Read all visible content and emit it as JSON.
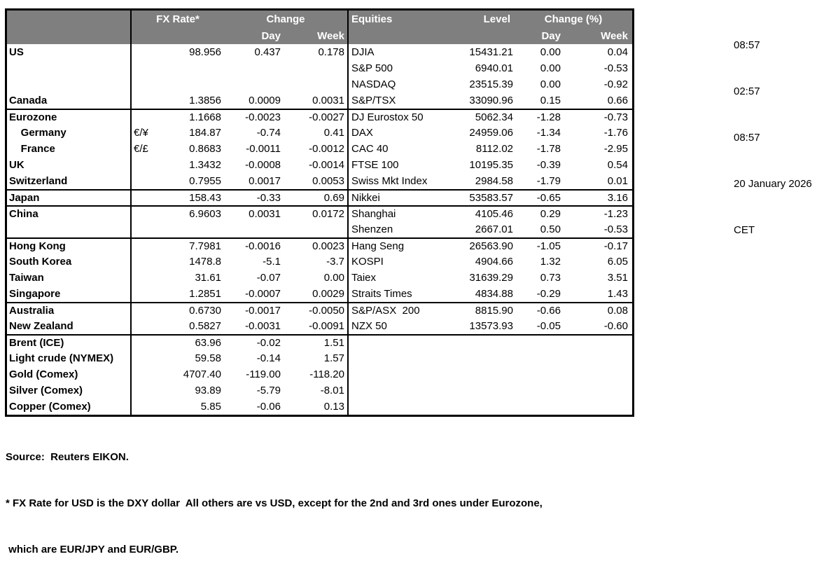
{
  "colors": {
    "header_bg": "#7f7f7f",
    "header_text": "#ffffff",
    "border": "#000000",
    "body_text": "#000000",
    "background": "#ffffff"
  },
  "header": {
    "fx_rate": "FX Rate*",
    "fx_change": "Change",
    "fx_day": "Day",
    "fx_week": "Week",
    "equities": "Equities",
    "level": "Level",
    "eq_change": "Change (%)",
    "eq_day": "Day",
    "eq_week": "Week"
  },
  "table": {
    "rows": [
      {
        "name": "US",
        "pair": "",
        "rate": "98.956",
        "day": "0.437",
        "week": "0.178",
        "ename": "DJIA",
        "level": "15431.21",
        "eday": "0.00",
        "eweek": "0.04",
        "sep": false
      },
      {
        "name": "",
        "pair": "",
        "rate": "",
        "day": "",
        "week": "",
        "ename": "S&P 500",
        "level": "6940.01",
        "eday": "0.00",
        "eweek": "-0.53",
        "sep": false
      },
      {
        "name": "",
        "pair": "",
        "rate": "",
        "day": "",
        "week": "",
        "ename": "NASDAQ",
        "level": "23515.39",
        "eday": "0.00",
        "eweek": "-0.92",
        "sep": false
      },
      {
        "name": "Canada",
        "pair": "",
        "rate": "1.3856",
        "day": "0.0009",
        "week": "0.0031",
        "ename": "S&P/TSX",
        "level": "33090.96",
        "eday": "0.15",
        "eweek": "0.66",
        "sep": false
      },
      {
        "name": "Eurozone",
        "pair": "",
        "rate": "1.1668",
        "day": "-0.0023",
        "week": "-0.0027",
        "ename": "DJ Eurostox 50",
        "level": "5062.34",
        "eday": "-1.28",
        "eweek": "-0.73",
        "sep": true
      },
      {
        "name": "    Germany",
        "pair": "€/¥",
        "rate": "184.87",
        "day": "-0.74",
        "week": "0.41",
        "ename": "DAX",
        "level": "24959.06",
        "eday": "-1.34",
        "eweek": "-1.76",
        "sep": false
      },
      {
        "name": "    France",
        "pair": "€/£",
        "rate": "0.8683",
        "day": "-0.0011",
        "week": "-0.0012",
        "ename": "CAC 40",
        "level": "8112.02",
        "eday": "-1.78",
        "eweek": "-2.95",
        "sep": false
      },
      {
        "name": "UK",
        "pair": "",
        "rate": "1.3432",
        "day": "-0.0008",
        "week": "-0.0014",
        "ename": "FTSE 100",
        "level": "10195.35",
        "eday": "-0.39",
        "eweek": "0.54",
        "sep": false
      },
      {
        "name": "Switzerland",
        "pair": "",
        "rate": "0.7955",
        "day": "0.0017",
        "week": "0.0053",
        "ename": "Swiss Mkt Index",
        "level": "2984.58",
        "eday": "-1.79",
        "eweek": "0.01",
        "sep": false
      },
      {
        "name": "Japan",
        "pair": "",
        "rate": "158.43",
        "day": "-0.33",
        "week": "0.69",
        "ename": "Nikkei",
        "level": "53583.57",
        "eday": "-0.65",
        "eweek": "3.16",
        "sep": true
      },
      {
        "name": "China",
        "pair": "",
        "rate": "6.9603",
        "day": "0.0031",
        "week": "0.0172",
        "ename": "Shanghai",
        "level": "4105.46",
        "eday": "0.29",
        "eweek": "-1.23",
        "sep": true
      },
      {
        "name": "",
        "pair": "",
        "rate": "",
        "day": "",
        "week": "",
        "ename": "Shenzen",
        "level": "2667.01",
        "eday": "0.50",
        "eweek": "-0.53",
        "sep": false
      },
      {
        "name": "Hong Kong",
        "pair": "",
        "rate": "7.7981",
        "day": "-0.0016",
        "week": "0.0023",
        "ename": "Hang Seng",
        "level": "26563.90",
        "eday": "-1.05",
        "eweek": "-0.17",
        "sep": true
      },
      {
        "name": "South Korea",
        "pair": "",
        "rate": "1478.8",
        "day": "-5.1",
        "week": "-3.7",
        "ename": "KOSPI",
        "level": "4904.66",
        "eday": "1.32",
        "eweek": "6.05",
        "sep": false
      },
      {
        "name": "Taiwan",
        "pair": "",
        "rate": "31.61",
        "day": "-0.07",
        "week": "0.00",
        "ename": "Taiex",
        "level": "31639.29",
        "eday": "0.73",
        "eweek": "3.51",
        "sep": false
      },
      {
        "name": "Singapore",
        "pair": "",
        "rate": "1.2851",
        "day": "-0.0007",
        "week": "0.0029",
        "ename": "Straits Times",
        "level": "4834.88",
        "eday": "-0.29",
        "eweek": "1.43",
        "sep": false
      },
      {
        "name": "Australia",
        "pair": "",
        "rate": "0.6730",
        "day": "-0.0017",
        "week": "-0.0050",
        "ename": "S&P/ASX  200",
        "level": "8815.90",
        "eday": "-0.66",
        "eweek": "0.08",
        "sep": true
      },
      {
        "name": "New Zealand",
        "pair": "",
        "rate": "0.5827",
        "day": "-0.0031",
        "week": "-0.0091",
        "ename": "NZX 50",
        "level": "13573.93",
        "eday": "-0.05",
        "eweek": "-0.60",
        "sep": false
      },
      {
        "name": "Brent (ICE)",
        "pair": "",
        "rate": "63.96",
        "day": "-0.02",
        "week": "1.51",
        "ename": "",
        "level": "",
        "eday": "",
        "eweek": "",
        "sep": true
      },
      {
        "name": "Light crude (NYMEX)",
        "pair": "",
        "rate": "59.58",
        "day": "-0.14",
        "week": "1.57",
        "ename": "",
        "level": "",
        "eday": "",
        "eweek": "",
        "sep": false
      },
      {
        "name": "Gold (Comex)",
        "pair": "",
        "rate": "4707.40",
        "day": "-119.00",
        "week": "-118.20",
        "ename": "",
        "level": "",
        "eday": "",
        "eweek": "",
        "sep": false
      },
      {
        "name": "Silver (Comex)",
        "pair": "",
        "rate": "93.89",
        "day": "-5.79",
        "week": "-8.01",
        "ename": "",
        "level": "",
        "eday": "",
        "eweek": "",
        "sep": false
      },
      {
        "name": "Copper (Comex)",
        "pair": "",
        "rate": "5.85",
        "day": "-0.06",
        "week": "0.13",
        "ename": "",
        "level": "",
        "eday": "",
        "eweek": "",
        "sep": false
      }
    ]
  },
  "timestamps": {
    "time_1": "08:57",
    "time_2": "02:57",
    "time_3": "08:57",
    "date": "20 January 2026",
    "timezone": "CET"
  },
  "footer": {
    "source": "Source:  Reuters EIKON.",
    "footnote_line1": "* FX Rate for USD is the DXY dollar  All others are vs USD, except for the 2nd and 3rd ones under Eurozone,",
    "footnote_line2": " which are EUR/JPY and EUR/GBP."
  }
}
